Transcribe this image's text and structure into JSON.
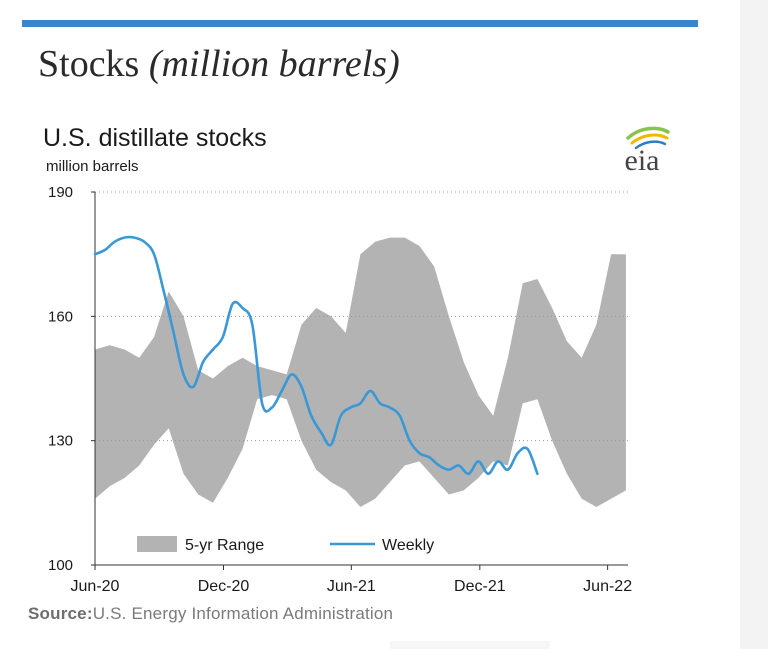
{
  "slide": {
    "title_main": "Stocks",
    "title_italic": "(million barrels)",
    "accent_color": "#3a86c8"
  },
  "source": {
    "label": "Source:",
    "text": "U.S. Energy Information Administration"
  },
  "logo": {
    "text": "eia",
    "icon": "eia-logo"
  },
  "chart_data": {
    "type": "area",
    "title": "U.S. distillate stocks",
    "ylabel": "million barrels",
    "ylim": [
      100,
      190
    ],
    "yticks": [
      100,
      130,
      160,
      190
    ],
    "grid": "horizontal dotted",
    "legend_position": "bottom-left",
    "xlim": [
      "2020-06-01",
      "2022-06-30"
    ],
    "xticks": [
      {
        "date": "2020-06-01",
        "label": "Jun-20"
      },
      {
        "date": "2020-12-01",
        "label": "Dec-20"
      },
      {
        "date": "2021-06-01",
        "label": "Jun-21"
      },
      {
        "date": "2021-12-01",
        "label": "Dec-21"
      },
      {
        "date": "2022-06-01",
        "label": "Jun-22"
      }
    ],
    "range": {
      "name": "5-yr Range",
      "color": "#b3b3b3",
      "dates": [
        "2020-06-01",
        "2020-06-22",
        "2020-07-13",
        "2020-08-03",
        "2020-08-24",
        "2020-09-14",
        "2020-10-05",
        "2020-10-26",
        "2020-11-16",
        "2020-12-07",
        "2020-12-28",
        "2021-01-18",
        "2021-02-08",
        "2021-03-01",
        "2021-03-22",
        "2021-04-12",
        "2021-05-03",
        "2021-05-24",
        "2021-06-14",
        "2021-07-05",
        "2021-07-26",
        "2021-08-16",
        "2021-09-06",
        "2021-09-27",
        "2021-10-18",
        "2021-11-08",
        "2021-11-29",
        "2021-12-20",
        "2022-01-10",
        "2022-01-31",
        "2022-02-21",
        "2022-03-14",
        "2022-04-04",
        "2022-04-25",
        "2022-05-16",
        "2022-06-06",
        "2022-06-27"
      ],
      "high": [
        152,
        153,
        152,
        150,
        155,
        166,
        160,
        147,
        145,
        148,
        150,
        148,
        147,
        146,
        158,
        162,
        160,
        156,
        175,
        178,
        179,
        179,
        177,
        172,
        160,
        149,
        141,
        136,
        150,
        168,
        169,
        162,
        154,
        150,
        158,
        175,
        175
      ],
      "low": [
        116,
        119,
        121,
        124,
        129,
        133,
        122,
        117,
        115,
        121,
        128,
        140,
        141,
        140,
        130,
        123,
        120,
        118,
        114,
        116,
        120,
        124,
        125,
        121,
        117,
        118,
        121,
        125,
        124,
        139,
        140,
        130,
        122,
        116,
        114,
        116,
        118
      ]
    },
    "series": [
      {
        "name": "Weekly",
        "color": "#3a98d6",
        "dates": [
          "2020-06-01",
          "2020-06-15",
          "2020-06-29",
          "2020-07-13",
          "2020-07-27",
          "2020-08-10",
          "2020-08-24",
          "2020-09-07",
          "2020-09-21",
          "2020-10-05",
          "2020-10-19",
          "2020-11-02",
          "2020-11-16",
          "2020-11-30",
          "2020-12-14",
          "2020-12-28",
          "2021-01-11",
          "2021-01-25",
          "2021-02-08",
          "2021-02-22",
          "2021-03-08",
          "2021-03-22",
          "2021-04-05",
          "2021-04-19",
          "2021-05-03",
          "2021-05-17",
          "2021-05-31",
          "2021-06-14",
          "2021-06-28",
          "2021-07-12",
          "2021-07-26",
          "2021-08-09",
          "2021-08-23",
          "2021-09-06",
          "2021-09-20",
          "2021-10-04",
          "2021-10-18",
          "2021-11-01",
          "2021-11-15",
          "2021-11-29",
          "2021-12-13",
          "2021-12-27",
          "2022-01-10",
          "2022-01-24",
          "2022-02-07",
          "2022-02-21"
        ],
        "values": [
          175,
          176,
          178,
          179,
          179,
          178,
          175,
          166,
          156,
          146,
          143,
          149,
          152,
          155,
          163,
          162,
          158,
          139,
          138,
          142,
          146,
          143,
          136,
          132,
          129,
          136,
          138,
          139,
          142,
          139,
          138,
          136,
          130,
          127,
          126,
          124,
          123,
          124,
          122,
          125,
          122,
          125,
          123,
          127,
          128,
          122
        ]
      }
    ]
  }
}
